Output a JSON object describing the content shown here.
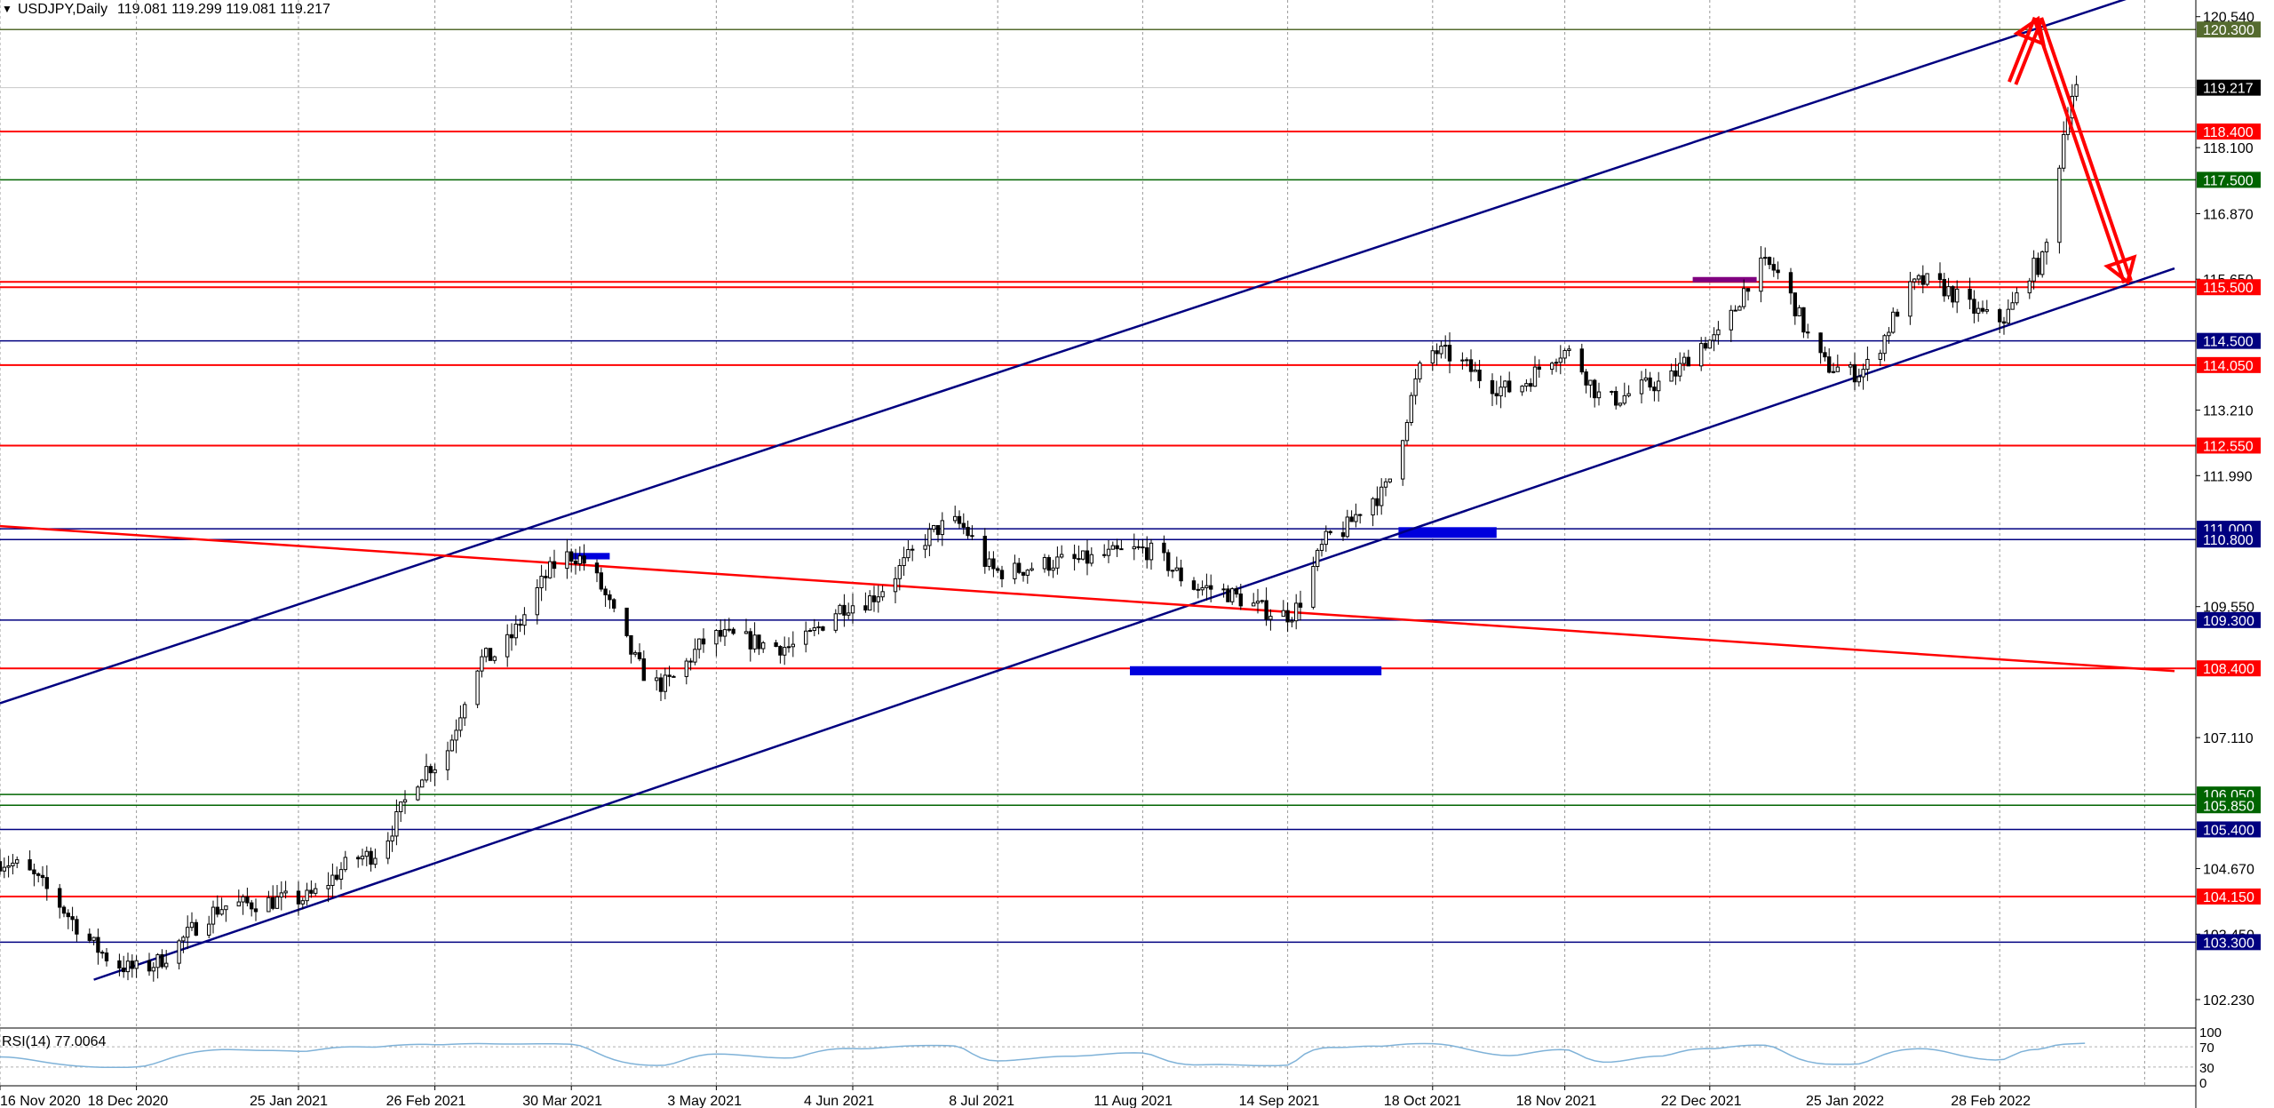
{
  "header": {
    "symbol_label": "USDJPY,Daily",
    "ohlc": "119.081 119.299 119.081 119.217"
  },
  "rsi": {
    "label": "RSI(14) 77.0064",
    "scale_labels": [
      "100",
      "70",
      "30",
      "0"
    ],
    "current_value": 77.0064
  },
  "colors": {
    "candle_up_fill": "#ffffff",
    "candle_down_fill": "#000000",
    "candle_wick": "#000000",
    "channel_line": "#000080",
    "red_level": "#ff0000",
    "blue_level": "#000080",
    "green_level": "#006400",
    "olive_level": "#556b2f",
    "arrow": "#ff0000",
    "rsi_line": "#7fb2d8",
    "price_tag_text": "#ffffff"
  },
  "chart_data": {
    "type": "candlestick",
    "symbol": "USDJPY",
    "timeframe": "Daily",
    "y_range": [
      101.7,
      120.85
    ],
    "x_range": [
      "2020-11-16",
      "2022-04-15"
    ],
    "price_axis_ticks": [
      120.54,
      119.217,
      118.1,
      116.87,
      115.65,
      113.21,
      111.99,
      109.55,
      107.11,
      104.67,
      103.45,
      102.23
    ],
    "price_axis_tick_labels": [
      "120.540",
      "118.100",
      "116.870",
      "115.650",
      "113.210",
      "111.990",
      "109.550",
      "107.110",
      "104.670",
      "103.450",
      "102.230"
    ],
    "date_ticks": [
      "2020-11-16",
      "2020-12-18",
      "2021-01-25",
      "2021-02-26",
      "2021-03-30",
      "2021-05-03",
      "2021-06-04",
      "2021-07-08",
      "2021-08-11",
      "2021-09-14",
      "2021-10-18",
      "2021-11-18",
      "2021-12-22",
      "2022-01-25",
      "2022-02-28"
    ],
    "date_tick_labels": [
      "16 Nov 2020",
      "18 Dec 2020",
      "25 Jan 2021",
      "26 Feb 2021",
      "30 Mar 2021",
      "3 May 2021",
      "4 Jun 2021",
      "8 Jul 2021",
      "11 Aug 2021",
      "14 Sep 2021",
      "18 Oct 2021",
      "18 Nov 2021",
      "22 Dec 2021",
      "25 Jan 2022",
      "28 Feb 2022"
    ],
    "current_price": 119.217,
    "current_price_label": "119.217",
    "horizontal_levels": [
      {
        "price": 120.3,
        "label": "120.300",
        "color": "olive"
      },
      {
        "price": 118.4,
        "label": "118.400",
        "color": "red"
      },
      {
        "price": 117.5,
        "label": "117.500",
        "color": "green"
      },
      {
        "price": 115.5,
        "label": "115.500",
        "color": "red"
      },
      {
        "price": 115.6,
        "label": "",
        "color": "red"
      },
      {
        "price": 114.5,
        "label": "114.500",
        "color": "blue"
      },
      {
        "price": 114.05,
        "label": "114.050",
        "color": "red"
      },
      {
        "price": 112.55,
        "label": "112.550",
        "color": "red"
      },
      {
        "price": 111.0,
        "label": "111.000",
        "color": "blue"
      },
      {
        "price": 110.8,
        "label": "110.800",
        "color": "blue"
      },
      {
        "price": 109.3,
        "label": "109.300",
        "color": "blue"
      },
      {
        "price": 108.4,
        "label": "108.400",
        "color": "red"
      },
      {
        "price": 106.05,
        "label": "106.050",
        "color": "green"
      },
      {
        "price": 105.85,
        "label": "105.850",
        "color": "green"
      },
      {
        "price": 105.4,
        "label": "105.400",
        "color": "blue"
      },
      {
        "price": 104.15,
        "label": "104.150",
        "color": "red"
      },
      {
        "price": 103.3,
        "label": "103.300",
        "color": "blue"
      }
    ],
    "trendlines": [
      {
        "name": "channel-upper",
        "from": [
          "2020-11-16",
          107.75
        ],
        "to": [
          "2022-04-15",
          121.3
        ],
        "color": "blue"
      },
      {
        "name": "channel-lower",
        "from": [
          "2020-12-08",
          102.6
        ],
        "to": [
          "2022-04-10",
          115.85
        ],
        "color": "blue"
      },
      {
        "name": "red-descending",
        "from": [
          "2020-11-16",
          111.05
        ],
        "to": [
          "2022-04-10",
          108.35
        ],
        "color": "red"
      }
    ],
    "zones": [
      {
        "from": "2021-03-30",
        "to": "2021-04-08",
        "low": 110.43,
        "high": 110.55,
        "color": "blue"
      },
      {
        "from": "2021-10-10",
        "to": "2021-11-02",
        "low": 110.83,
        "high": 111.03,
        "color": "blue"
      },
      {
        "from": "2021-08-08",
        "to": "2021-10-06",
        "low": 108.27,
        "high": 108.44,
        "color": "blue"
      },
      {
        "from": "2021-12-18",
        "to": "2022-01-02",
        "low": 115.59,
        "high": 115.69,
        "color": "purple"
      }
    ],
    "arrows": [
      {
        "from": [
          "2022-03-03",
          119.3
        ],
        "to": [
          "2022-03-09",
          120.5
        ],
        "color": "red"
      },
      {
        "from": [
          "2022-03-09",
          120.5
        ],
        "to": [
          "2022-03-30",
          115.6
        ],
        "color": "red"
      }
    ],
    "anchors": [
      {
        "date": "2020-11-16",
        "price": 104.8
      },
      {
        "date": "2020-12-18",
        "price": 102.8
      },
      {
        "date": "2021-01-10",
        "price": 104.0
      },
      {
        "date": "2021-01-25",
        "price": 104.1
      },
      {
        "date": "2021-02-10",
        "price": 104.9
      },
      {
        "date": "2021-02-26",
        "price": 106.6
      },
      {
        "date": "2021-03-10",
        "price": 108.6
      },
      {
        "date": "2021-03-30",
        "price": 110.5
      },
      {
        "date": "2021-04-20",
        "price": 108.1
      },
      {
        "date": "2021-05-03",
        "price": 109.0
      },
      {
        "date": "2021-05-20",
        "price": 108.8
      },
      {
        "date": "2021-06-04",
        "price": 109.6
      },
      {
        "date": "2021-06-28",
        "price": 111.1
      },
      {
        "date": "2021-07-08",
        "price": 110.2
      },
      {
        "date": "2021-07-25",
        "price": 110.4
      },
      {
        "date": "2021-08-11",
        "price": 110.6
      },
      {
        "date": "2021-08-25",
        "price": 109.9
      },
      {
        "date": "2021-09-14",
        "price": 109.4
      },
      {
        "date": "2021-09-25",
        "price": 110.9
      },
      {
        "date": "2021-10-05",
        "price": 111.6
      },
      {
        "date": "2021-10-18",
        "price": 114.3
      },
      {
        "date": "2021-11-05",
        "price": 113.6
      },
      {
        "date": "2021-11-18",
        "price": 114.3
      },
      {
        "date": "2021-11-28",
        "price": 113.4
      },
      {
        "date": "2021-12-10",
        "price": 113.7
      },
      {
        "date": "2021-12-22",
        "price": 114.5
      },
      {
        "date": "2022-01-04",
        "price": 115.9
      },
      {
        "date": "2022-01-20",
        "price": 114.0
      },
      {
        "date": "2022-01-25",
        "price": 113.9
      },
      {
        "date": "2022-02-10",
        "price": 115.6
      },
      {
        "date": "2022-02-28",
        "price": 114.9
      },
      {
        "date": "2022-03-09",
        "price": 115.9
      },
      {
        "date": "2022-03-18",
        "price": 119.2
      }
    ]
  }
}
